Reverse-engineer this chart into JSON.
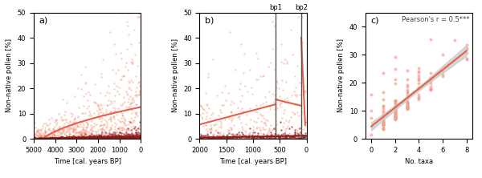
{
  "panel_a": {
    "label": "a)",
    "xlim": [
      5000,
      0
    ],
    "ylim": [
      0,
      50
    ],
    "xlabel": "Time [cal. years BP]",
    "ylabel": "Non-native pollen [%]",
    "xticks": [
      5000,
      4000,
      3000,
      2000,
      1000,
      0
    ],
    "yticks": [
      0,
      10,
      20,
      30,
      40,
      50
    ],
    "scatter_color_max": "#f4a08a",
    "scatter_color_min": "#8b1a1a",
    "line_color_max": "#e8604a",
    "line_color_min": "#8b1a1a",
    "seed": 42
  },
  "panel_b": {
    "label": "b)",
    "xlim": [
      2000,
      0
    ],
    "ylim": [
      0,
      50
    ],
    "xlabel": "Time [cal. years BP]",
    "ylabel": "Non-native pollen [%]",
    "xticks": [
      2000,
      1500,
      1000,
      500,
      0
    ],
    "yticks": [
      0,
      10,
      20,
      30,
      40,
      50
    ],
    "bp1": 575,
    "bp2": 102,
    "scatter_color_max": "#f4a08a",
    "scatter_color_min": "#8b1a1a",
    "line_color_max": "#e8604a",
    "line_color_min": "#8b1a1a",
    "bp_line_color": "#555555"
  },
  "panel_c": {
    "label": "c)",
    "xlim": [
      -0.5,
      8.5
    ],
    "ylim": [
      0,
      45
    ],
    "xlabel": "No. taxa",
    "ylabel": "Non-native pollen [%]",
    "xticks": [
      0,
      2,
      4,
      6,
      8
    ],
    "yticks": [
      0,
      10,
      20,
      30,
      40
    ],
    "scatter_color": "#f4a08a",
    "line_color": "#e8604a",
    "ci_color": "#cccccc",
    "annotation": "Pearson's r = 0.5***",
    "seed": 123
  }
}
